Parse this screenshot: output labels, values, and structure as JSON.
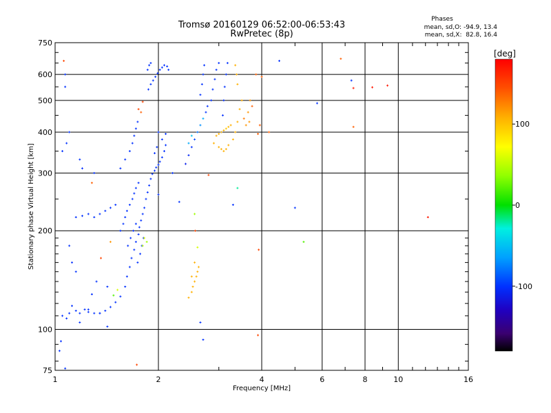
{
  "chart_data": {
    "type": "scatter",
    "title": "Tromsø 20160129 06:52:00-06:53:43",
    "subtitle": "RwPretec (8p)",
    "stats": {
      "heading": "Phases",
      "line_o": "mean, sd,O: -94.9, 13.4",
      "line_x": "mean, sd,X:  82.8, 16.4"
    },
    "xlabel": "Frequency [MHz]",
    "ylabel": "Stationary phase Virtual Height [km]",
    "x_scale": "log",
    "y_scale": "log",
    "xlim": [
      1,
      16
    ],
    "ylim": [
      75,
      750
    ],
    "x_ticks": [
      1,
      2,
      4,
      6,
      8,
      10,
      16
    ],
    "y_ticks": [
      75,
      100,
      200,
      300,
      400,
      500,
      600,
      750
    ],
    "grid": true,
    "colorbar": {
      "label": "[deg]",
      "ticks": [
        100,
        0,
        -100
      ],
      "range": [
        -180,
        180
      ]
    },
    "points": [
      [
        1.05,
        110,
        -100
      ],
      [
        1.08,
        108,
        -100
      ],
      [
        1.1,
        112,
        -100
      ],
      [
        1.12,
        118,
        -100
      ],
      [
        1.15,
        114,
        -100
      ],
      [
        1.18,
        112,
        -100
      ],
      [
        1.22,
        115,
        -100
      ],
      [
        1.25,
        113,
        -100
      ],
      [
        1.3,
        112,
        -100
      ],
      [
        1.35,
        112,
        -100
      ],
      [
        1.4,
        114,
        -100
      ],
      [
        1.45,
        117,
        -100
      ],
      [
        1.5,
        121,
        -100
      ],
      [
        1.55,
        126,
        -100
      ],
      [
        1.6,
        135,
        -100
      ],
      [
        1.62,
        145,
        -100
      ],
      [
        1.65,
        155,
        -100
      ],
      [
        1.67,
        165,
        -100
      ],
      [
        1.7,
        175,
        -100
      ],
      [
        1.72,
        185,
        -100
      ],
      [
        1.75,
        195,
        -100
      ],
      [
        1.76,
        205,
        -100
      ],
      [
        1.78,
        215,
        -100
      ],
      [
        1.8,
        225,
        -100
      ],
      [
        1.82,
        235,
        -100
      ],
      [
        1.84,
        250,
        -100
      ],
      [
        1.86,
        262,
        -100
      ],
      [
        1.88,
        275,
        -100
      ],
      [
        1.9,
        288,
        -100
      ],
      [
        1.92,
        298,
        -100
      ],
      [
        1.95,
        305,
        -100
      ],
      [
        1.97,
        312,
        -100
      ],
      [
        2.0,
        318,
        -100
      ],
      [
        2.02,
        325,
        -100
      ],
      [
        2.05,
        335,
        -100
      ],
      [
        2.08,
        350,
        -100
      ],
      [
        2.1,
        365,
        -100
      ],
      [
        1.55,
        200,
        -100
      ],
      [
        1.58,
        210,
        -100
      ],
      [
        1.6,
        220,
        -100
      ],
      [
        1.62,
        230,
        -100
      ],
      [
        1.65,
        240,
        -100
      ],
      [
        1.68,
        250,
        -100
      ],
      [
        1.7,
        260,
        -100
      ],
      [
        1.72,
        270,
        -100
      ],
      [
        1.75,
        280,
        -100
      ],
      [
        1.63,
        180,
        -100
      ],
      [
        1.66,
        190,
        -100
      ],
      [
        1.69,
        200,
        -100
      ],
      [
        1.72,
        210,
        -100
      ],
      [
        1.74,
        160,
        -100
      ],
      [
        1.77,
        170,
        -100
      ],
      [
        1.79,
        180,
        -100
      ],
      [
        1.81,
        190,
        -100
      ],
      [
        1.3,
        220,
        -100
      ],
      [
        1.35,
        225,
        -100
      ],
      [
        1.4,
        230,
        -100
      ],
      [
        1.45,
        235,
        -100
      ],
      [
        1.5,
        240,
        -100
      ],
      [
        1.25,
        225,
        -100
      ],
      [
        1.2,
        222,
        -100
      ],
      [
        1.15,
        220,
        -100
      ],
      [
        1.55,
        310,
        -100
      ],
      [
        1.6,
        330,
        -100
      ],
      [
        1.65,
        350,
        -100
      ],
      [
        1.68,
        370,
        -100
      ],
      [
        1.7,
        390,
        -100
      ],
      [
        1.72,
        410,
        -100
      ],
      [
        1.74,
        430,
        -100
      ],
      [
        1.87,
        540,
        -100
      ],
      [
        1.9,
        560,
        -100
      ],
      [
        1.93,
        575,
        -100
      ],
      [
        1.96,
        590,
        -100
      ],
      [
        1.99,
        605,
        -100
      ],
      [
        2.02,
        620,
        -100
      ],
      [
        2.05,
        630,
        -100
      ],
      [
        2.08,
        640,
        -100
      ],
      [
        2.12,
        635,
        -100
      ],
      [
        2.14,
        620,
        -100
      ],
      [
        1.86,
        620,
        -100
      ],
      [
        1.88,
        640,
        -100
      ],
      [
        1.9,
        650,
        -100
      ],
      [
        2.0,
        400,
        -100
      ],
      [
        2.05,
        380,
        -100
      ],
      [
        2.1,
        395,
        -100
      ],
      [
        1.95,
        345,
        -100
      ],
      [
        1.98,
        360,
        -100
      ],
      [
        2.4,
        320,
        -110
      ],
      [
        2.45,
        340,
        -105
      ],
      [
        2.5,
        360,
        -100
      ],
      [
        2.55,
        380,
        -90
      ],
      [
        2.6,
        400,
        -80
      ],
      [
        2.65,
        420,
        -70
      ],
      [
        2.7,
        440,
        -60
      ],
      [
        2.45,
        370,
        -60
      ],
      [
        2.5,
        390,
        -50
      ],
      [
        2.65,
        520,
        -100
      ],
      [
        2.68,
        560,
        -100
      ],
      [
        2.7,
        600,
        -100
      ],
      [
        2.72,
        640,
        -100
      ],
      [
        2.75,
        460,
        -100
      ],
      [
        2.78,
        480,
        -100
      ],
      [
        2.85,
        500,
        -100
      ],
      [
        2.88,
        540,
        -100
      ],
      [
        2.92,
        580,
        -100
      ],
      [
        2.95,
        620,
        -100
      ],
      [
        3.0,
        650,
        -100
      ],
      [
        3.05,
        400,
        -100
      ],
      [
        3.08,
        450,
        -100
      ],
      [
        3.1,
        500,
        -100
      ],
      [
        3.12,
        550,
        -100
      ],
      [
        3.15,
        600,
        -100
      ],
      [
        3.18,
        650,
        -100
      ],
      [
        2.95,
        390,
        110
      ],
      [
        3.0,
        395,
        110
      ],
      [
        3.05,
        400,
        105
      ],
      [
        3.1,
        405,
        110
      ],
      [
        3.15,
        410,
        100
      ],
      [
        3.2,
        415,
        105
      ],
      [
        3.25,
        420,
        110
      ],
      [
        2.9,
        370,
        110
      ],
      [
        3.0,
        360,
        110
      ],
      [
        3.05,
        355,
        110
      ],
      [
        3.1,
        350,
        110
      ],
      [
        3.15,
        355,
        110
      ],
      [
        3.2,
        365,
        110
      ],
      [
        3.3,
        380,
        110
      ],
      [
        3.35,
        400,
        110
      ],
      [
        3.4,
        430,
        110
      ],
      [
        3.45,
        470,
        110
      ],
      [
        3.5,
        500,
        110
      ],
      [
        3.4,
        560,
        110
      ],
      [
        3.38,
        600,
        110
      ],
      [
        3.35,
        640,
        110
      ],
      [
        3.6,
        420,
        120
      ],
      [
        3.65,
        460,
        120
      ],
      [
        3.7,
        500,
        120
      ],
      [
        3.68,
        430,
        120
      ],
      [
        3.55,
        440,
        130
      ],
      [
        3.75,
        480,
        140
      ],
      [
        3.95,
        420,
        140
      ],
      [
        3.9,
        395,
        140
      ],
      [
        2.45,
        125,
        110
      ],
      [
        2.5,
        130,
        110
      ],
      [
        2.52,
        135,
        110
      ],
      [
        2.55,
        140,
        110
      ],
      [
        2.58,
        145,
        110
      ],
      [
        2.6,
        150,
        110
      ],
      [
        2.62,
        155,
        110
      ],
      [
        2.5,
        145,
        110
      ],
      [
        2.55,
        160,
        110
      ],
      [
        1.1,
        180,
        -100
      ],
      [
        1.12,
        160,
        -100
      ],
      [
        1.15,
        150,
        -100
      ],
      [
        1.08,
        370,
        -100
      ],
      [
        1.05,
        350,
        -100
      ],
      [
        1.1,
        400,
        -100
      ],
      [
        1.18,
        330,
        -100
      ],
      [
        1.2,
        310,
        -100
      ],
      [
        1.06,
        660,
        150
      ],
      [
        1.07,
        600,
        -100
      ],
      [
        1.07,
        550,
        -100
      ],
      [
        1.3,
        300,
        -100
      ],
      [
        1.28,
        280,
        140
      ],
      [
        1.32,
        140,
        -100
      ],
      [
        1.42,
        135,
        -100
      ],
      [
        1.45,
        185,
        120
      ],
      [
        1.36,
        165,
        150
      ],
      [
        1.28,
        128,
        -100
      ],
      [
        1.35,
        112,
        -100
      ],
      [
        1.18,
        105,
        -100
      ],
      [
        1.25,
        115,
        -100
      ],
      [
        1.42,
        102,
        -100
      ],
      [
        1.04,
        92,
        -100
      ],
      [
        1.03,
        86,
        -100
      ],
      [
        1.07,
        76,
        -100
      ],
      [
        1.48,
        127,
        20
      ],
      [
        1.52,
        132,
        60
      ],
      [
        1.82,
        190,
        60
      ],
      [
        1.85,
        185,
        40
      ],
      [
        1.8,
        180,
        50
      ],
      [
        1.8,
        495,
        150
      ],
      [
        1.78,
        460,
        140
      ],
      [
        1.75,
        470,
        150
      ],
      [
        2.0,
        258,
        -100
      ],
      [
        2.2,
        300,
        -100
      ],
      [
        2.3,
        245,
        -100
      ],
      [
        2.55,
        225,
        40
      ],
      [
        2.56,
        200,
        150
      ],
      [
        2.6,
        178,
        60
      ],
      [
        2.65,
        105,
        -100
      ],
      [
        2.7,
        93,
        -100
      ],
      [
        2.8,
        296,
        150
      ],
      [
        3.3,
        240,
        -100
      ],
      [
        3.4,
        270,
        -20
      ],
      [
        3.9,
        96,
        150
      ],
      [
        3.85,
        600,
        140
      ],
      [
        3.92,
        175,
        150
      ],
      [
        4.0,
        590,
        140
      ],
      [
        4.2,
        400,
        140
      ],
      [
        4.5,
        660,
        -100
      ],
      [
        5.0,
        235,
        -100
      ],
      [
        5.3,
        185,
        20
      ],
      [
        5.8,
        490,
        -100
      ],
      [
        6.8,
        670,
        140
      ],
      [
        7.3,
        575,
        -100
      ],
      [
        7.4,
        545,
        170
      ],
      [
        7.4,
        415,
        140
      ],
      [
        8.4,
        548,
        170
      ],
      [
        9.3,
        555,
        170
      ],
      [
        12.2,
        220,
        170
      ],
      [
        1.73,
        78,
        150
      ]
    ]
  }
}
